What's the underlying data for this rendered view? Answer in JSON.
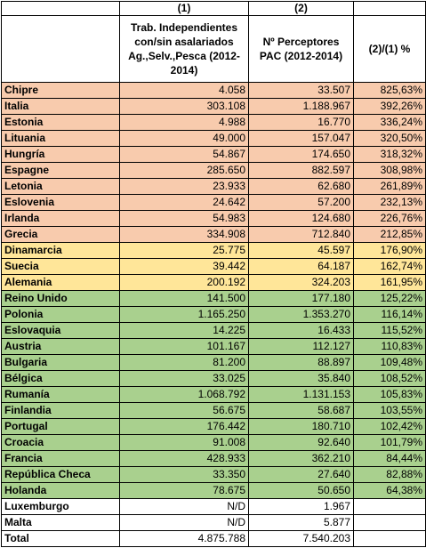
{
  "header": {
    "col2_index": "(1)",
    "col3_index": "(2)",
    "col2_title": "Trab. Independientes con/sin asalariados Ag.,Selv.,Pesca (2012-2014)",
    "col3_title": "Nº Perceptores PAC (2012-2014)",
    "col4_title": "(2)/(1) %"
  },
  "rows": [
    {
      "country": "Chipre",
      "workers": "4.058",
      "pac": "33.507",
      "ratio": "825,63%",
      "color": "#f8cbad"
    },
    {
      "country": "Italia",
      "workers": "303.108",
      "pac": "1.188.967",
      "ratio": "392,26%",
      "color": "#f8cbad"
    },
    {
      "country": "Estonia",
      "workers": "4.988",
      "pac": "16.770",
      "ratio": "336,24%",
      "color": "#f8cbad"
    },
    {
      "country": "Lituania",
      "workers": "49.000",
      "pac": "157.047",
      "ratio": "320,50%",
      "color": "#f8cbad"
    },
    {
      "country": "Hungría",
      "workers": "54.867",
      "pac": "174.650",
      "ratio": "318,32%",
      "color": "#f8cbad"
    },
    {
      "country": "Espagne",
      "workers": "285.650",
      "pac": "882.597",
      "ratio": "308,98%",
      "color": "#f8cbad"
    },
    {
      "country": "Letonia",
      "workers": "23.933",
      "pac": "62.680",
      "ratio": "261,89%",
      "color": "#f8cbad"
    },
    {
      "country": "Eslovenia",
      "workers": "24.642",
      "pac": "57.200",
      "ratio": "232,13%",
      "color": "#f8cbad"
    },
    {
      "country": "Irlanda",
      "workers": "54.983",
      "pac": "124.680",
      "ratio": "226,76%",
      "color": "#f8cbad"
    },
    {
      "country": "Grecia",
      "workers": "334.908",
      "pac": "712.840",
      "ratio": "212,85%",
      "color": "#f8cbad"
    },
    {
      "country": "Dinamarcia",
      "workers": "25.775",
      "pac": "45.597",
      "ratio": "176,90%",
      "color": "#ffe699"
    },
    {
      "country": "Suecia",
      "workers": "39.442",
      "pac": "64.187",
      "ratio": "162,74%",
      "color": "#ffe699"
    },
    {
      "country": "Alemania",
      "workers": "200.192",
      "pac": "324.203",
      "ratio": "161,95%",
      "color": "#ffe699"
    },
    {
      "country": "Reino Unido",
      "workers": "141.500",
      "pac": "177.180",
      "ratio": "125,22%",
      "color": "#a9d08e"
    },
    {
      "country": "Polonia",
      "workers": "1.165.250",
      "pac": "1.353.270",
      "ratio": "116,14%",
      "color": "#a9d08e"
    },
    {
      "country": "Eslovaquia",
      "workers": "14.225",
      "pac": "16.433",
      "ratio": "115,52%",
      "color": "#a9d08e"
    },
    {
      "country": "Austria",
      "workers": "101.167",
      "pac": "112.127",
      "ratio": "110,83%",
      "color": "#a9d08e"
    },
    {
      "country": "Bulgaria",
      "workers": "81.200",
      "pac": "88.897",
      "ratio": "109,48%",
      "color": "#a9d08e"
    },
    {
      "country": "Bélgica",
      "workers": "33.025",
      "pac": "35.840",
      "ratio": "108,52%",
      "color": "#a9d08e"
    },
    {
      "country": "Rumanía",
      "workers": "1.068.792",
      "pac": "1.131.153",
      "ratio": "105,83%",
      "color": "#a9d08e"
    },
    {
      "country": "Finlandia",
      "workers": "56.675",
      "pac": "58.687",
      "ratio": "103,55%",
      "color": "#a9d08e"
    },
    {
      "country": "Portugal",
      "workers": "176.442",
      "pac": "180.710",
      "ratio": "102,42%",
      "color": "#a9d08e"
    },
    {
      "country": "Croacia",
      "workers": "91.008",
      "pac": "92.640",
      "ratio": "101,79%",
      "color": "#a9d08e"
    },
    {
      "country": "Francia",
      "workers": "428.933",
      "pac": "362.210",
      "ratio": "84,44%",
      "color": "#a9d08e"
    },
    {
      "country": "República Checa",
      "workers": "33.350",
      "pac": "27.640",
      "ratio": "82,88%",
      "color": "#a9d08e"
    },
    {
      "country": "Holanda",
      "workers": "78.675",
      "pac": "50.650",
      "ratio": "64,38%",
      "color": "#a9d08e"
    },
    {
      "country": "Luxemburgo",
      "workers": "N/D",
      "pac": "1.967",
      "ratio": "",
      "color": "#ffffff"
    },
    {
      "country": "Malta",
      "workers": "N/D",
      "pac": "5.877",
      "ratio": "",
      "color": "#ffffff"
    }
  ],
  "total": {
    "country": "Total",
    "workers": "4.875.788",
    "pac": "7.540.203",
    "ratio": ""
  }
}
